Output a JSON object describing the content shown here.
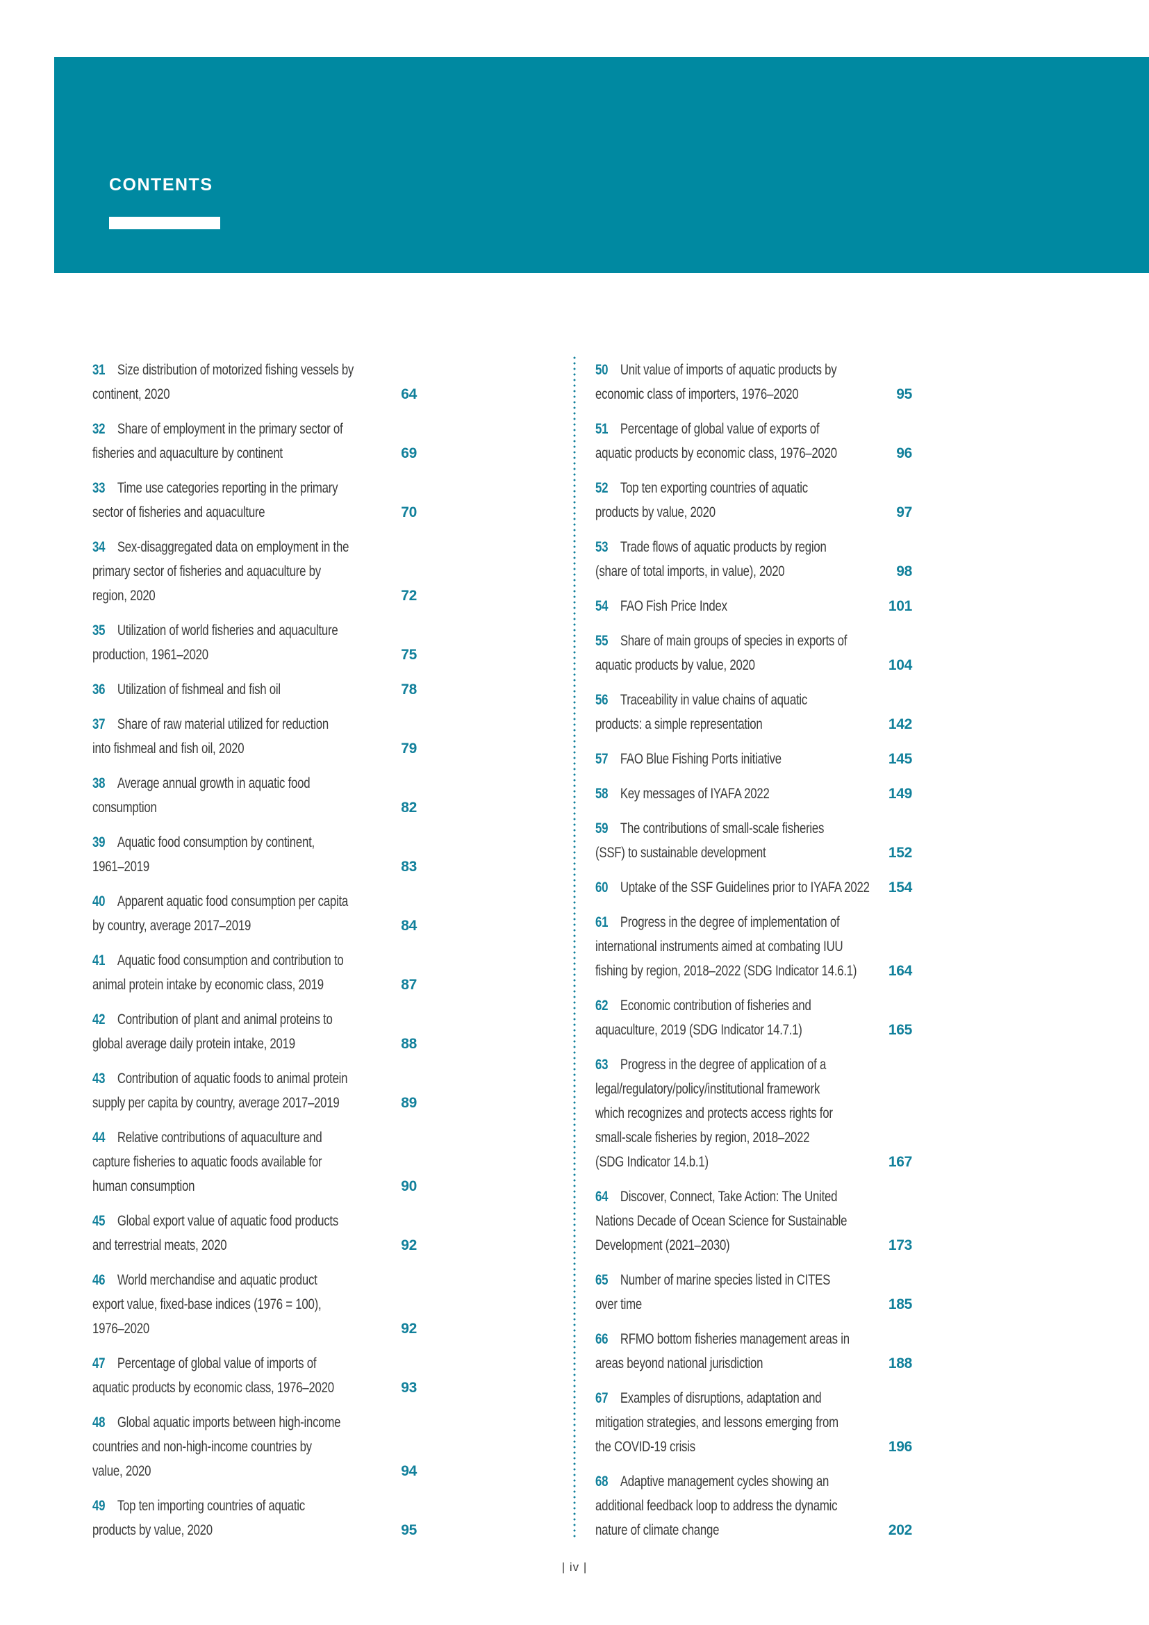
{
  "colors": {
    "banner": "#0089A1",
    "accent": "#11809B",
    "body_text": "#3B3B3A"
  },
  "header": {
    "title": "CONTENTS"
  },
  "footer": {
    "page_label": "| iv |"
  },
  "toc": {
    "left_column": [
      {
        "num": "31",
        "title": "Size distribution of motorized fishing vessels by\ncontinent, 2020",
        "page": "64"
      },
      {
        "num": "32",
        "title": "Share of employment in the primary sector of\nfisheries and aquaculture by continent",
        "page": "69"
      },
      {
        "num": "33",
        "title": "Time use categories reporting in the primary\nsector of fisheries and aquaculture",
        "page": "70"
      },
      {
        "num": "34",
        "title": "Sex-disaggregated data on employment in the\nprimary sector of fisheries and aquaculture by\nregion, 2020",
        "page": "72"
      },
      {
        "num": "35",
        "title": "Utilization of world fisheries and aquaculture\nproduction, 1961–2020",
        "page": "75"
      },
      {
        "num": "36",
        "title": "Utilization of fishmeal and fish oil",
        "page": "78"
      },
      {
        "num": "37",
        "title": "Share of raw material utilized for reduction\ninto fishmeal and fish oil, 2020",
        "page": "79"
      },
      {
        "num": "38",
        "title": "Average annual growth in aquatic food\nconsumption",
        "page": "82"
      },
      {
        "num": "39",
        "title": "Aquatic food consumption by continent,\n1961–2019",
        "page": "83"
      },
      {
        "num": "40",
        "title": "Apparent aquatic food consumption per capita\nby country, average 2017–2019",
        "page": "84"
      },
      {
        "num": "41",
        "title": "Aquatic food consumption and contribution to\nanimal protein intake by economic class, 2019",
        "page": "87"
      },
      {
        "num": "42",
        "title": "Contribution of plant and animal proteins to\nglobal average daily protein intake, 2019",
        "page": "88"
      },
      {
        "num": "43",
        "title": "Contribution of aquatic foods to animal protein\nsupply per capita by country, average 2017–2019",
        "page": "89"
      },
      {
        "num": "44",
        "title": "Relative contributions of aquaculture and\ncapture fisheries to aquatic foods available for\nhuman consumption",
        "page": "90"
      },
      {
        "num": "45",
        "title": "Global export value of aquatic food products\nand terrestrial meats, 2020",
        "page": "92"
      },
      {
        "num": "46",
        "title": "World merchandise and aquatic product\nexport value, fixed-base indices (1976 = 100),\n1976–2020",
        "page": "92"
      },
      {
        "num": "47",
        "title": "Percentage of global value of imports of\naquatic products by economic class, 1976–2020",
        "page": "93"
      },
      {
        "num": "48",
        "title": "Global aquatic imports between high-income\ncountries and non-high-income countries by\nvalue, 2020",
        "page": "94"
      },
      {
        "num": "49",
        "title": "Top ten importing countries of aquatic\nproducts by value, 2020",
        "page": "95"
      }
    ],
    "right_column": [
      {
        "num": "50",
        "title": "Unit value of imports of aquatic products by\neconomic class of importers, 1976–2020",
        "page": "95"
      },
      {
        "num": "51",
        "title": "Percentage of global value of exports of\naquatic products by economic class, 1976–2020",
        "page": "96"
      },
      {
        "num": "52",
        "title": "Top ten exporting countries of aquatic\nproducts by value, 2020",
        "page": "97"
      },
      {
        "num": "53",
        "title": "Trade flows of aquatic products by region\n(share of total imports, in value), 2020",
        "page": "98"
      },
      {
        "num": "54",
        "title": "FAO Fish Price Index",
        "page": "101"
      },
      {
        "num": "55",
        "title": "Share of main groups of species in exports of\naquatic products by value, 2020",
        "page": "104"
      },
      {
        "num": "56",
        "title": "Traceability in value chains of aquatic\nproducts: a simple representation",
        "page": "142"
      },
      {
        "num": "57",
        "title": "FAO Blue Fishing Ports initiative",
        "page": "145"
      },
      {
        "num": "58",
        "title": "Key messages of IYAFA 2022",
        "page": "149"
      },
      {
        "num": "59",
        "title": "The contributions of small-scale fisheries\n(SSF) to sustainable development",
        "page": "152"
      },
      {
        "num": "60",
        "title": "Uptake of the SSF Guidelines prior to IYAFA 2022",
        "page": "154"
      },
      {
        "num": "61",
        "title": "Progress in the degree of implementation of\ninternational instruments aimed at combating IUU\nfishing by region, 2018–2022 (SDG Indicator 14.6.1)",
        "page": "164"
      },
      {
        "num": "62",
        "title": "Economic contribution of fisheries and\naquaculture, 2019 (SDG Indicator 14.7.1)",
        "page": "165"
      },
      {
        "num": "63",
        "title": "Progress in the degree of application of a\nlegal/regulatory/policy/institutional framework\nwhich recognizes and protects access rights for\nsmall-scale fisheries by region, 2018–2022\n(SDG Indicator 14.b.1)",
        "page": "167"
      },
      {
        "num": "64",
        "title": "Discover, Connect, Take Action: The United\nNations Decade of Ocean Science for Sustainable\nDevelopment (2021–2030)",
        "page": "173"
      },
      {
        "num": "65",
        "title": "Number of marine species listed in CITES\nover time",
        "page": "185"
      },
      {
        "num": "66",
        "title": "RFMO bottom fisheries management areas in\nareas beyond national jurisdiction",
        "page": "188"
      },
      {
        "num": "67",
        "title": "Examples of disruptions, adaptation and\nmitigation strategies, and lessons emerging from\nthe COVID-19 crisis",
        "page": "196"
      },
      {
        "num": "68",
        "title": "Adaptive management cycles showing an\nadditional feedback loop to address the dynamic\nnature of climate change",
        "page": "202"
      }
    ]
  }
}
